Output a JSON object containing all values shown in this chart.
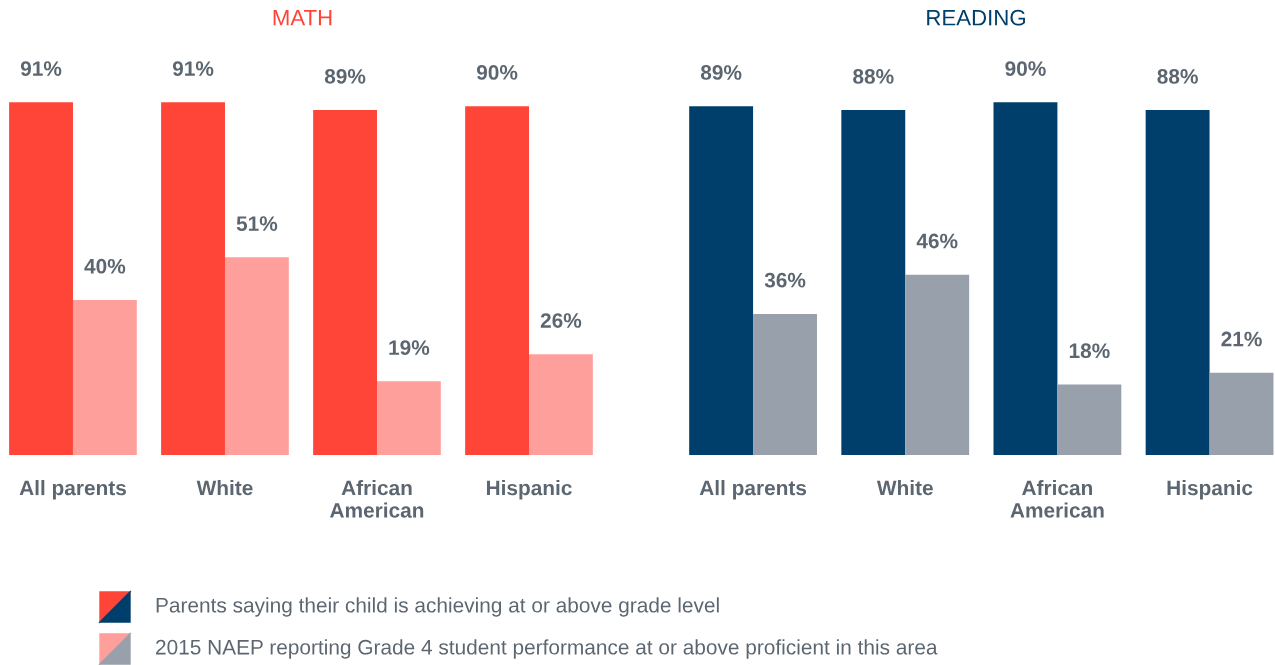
{
  "chart_data": [
    {
      "type": "bar",
      "title": "MATH",
      "categories": [
        "All parents",
        "White",
        "African\nAmerican",
        "Hispanic"
      ],
      "legend": "bottom",
      "grid": false,
      "series": [
        {
          "name": "Parents saying their child is achieving at or above grade level",
          "color": "#ff4438",
          "values": [
            91,
            91,
            89,
            90
          ],
          "value_labels": [
            "91%",
            "91%",
            "89%",
            "90%"
          ]
        },
        {
          "name": "2015 NAEP reporting Grade 4 student performance at or above proficient in this area",
          "color": "#ff9f9b",
          "values": [
            40,
            51,
            19,
            26
          ],
          "value_labels": [
            "40%",
            "51%",
            "19%",
            "26%"
          ]
        }
      ]
    },
    {
      "type": "bar",
      "title": "READING",
      "categories": [
        "All parents",
        "White",
        "African\nAmerican",
        "Hispanic"
      ],
      "legend": "bottom",
      "grid": false,
      "series": [
        {
          "color": "#003f6b",
          "values": [
            89,
            88,
            90,
            88
          ],
          "value_labels": [
            "89%",
            "88%",
            "90%",
            "88%"
          ]
        },
        {
          "color": "#98a0ab",
          "values": [
            36,
            46,
            18,
            21
          ],
          "value_labels": [
            "36%",
            "46%",
            "18%",
            "21%"
          ]
        }
      ]
    }
  ]
}
